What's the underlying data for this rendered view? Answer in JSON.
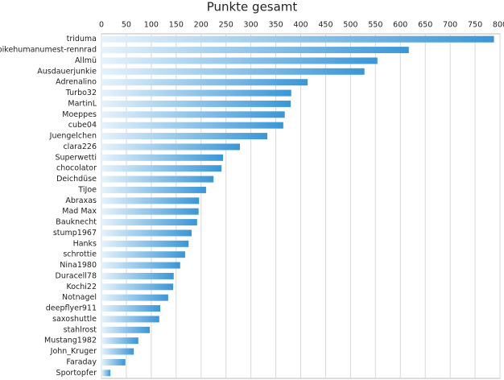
{
  "chart_data": {
    "type": "bar",
    "orientation": "horizontal",
    "title": "Punkte gesamt",
    "categories": [
      "triduma",
      "bikehumanumest-rennrad",
      "Allmü",
      "Ausdauerjunkie",
      "Adrenalino",
      "Turbo32",
      "MartinL",
      "Moeppes",
      "cube04",
      "Juengelchen",
      "clara226",
      "Superwetti",
      "chocolator",
      "Deichdüse",
      "TiJoe",
      "Abraxas",
      "Mad Max",
      "Bauknecht",
      "stump1967",
      "Hanks",
      "schrottie",
      "Nina1980",
      "Duracell78",
      "Kochi22",
      "Notnagel",
      "deepflyer911",
      "saxoshuttle",
      "stahlrost",
      "Mustang1982",
      "John_Kruger",
      "Faraday",
      "Sportopfer"
    ],
    "values": [
      788,
      617,
      554,
      528,
      414,
      381,
      380,
      368,
      365,
      333,
      278,
      244,
      241,
      225,
      210,
      196,
      195,
      192,
      181,
      175,
      168,
      158,
      145,
      144,
      134,
      118,
      116,
      97,
      74,
      65,
      48,
      18
    ],
    "color": "#3a96d6",
    "xlim": [
      0,
      800
    ],
    "xticks": [
      0,
      50,
      100,
      150,
      200,
      250,
      300,
      350,
      400,
      450,
      500,
      550,
      600,
      650,
      700,
      750,
      800
    ],
    "grid": true
  }
}
